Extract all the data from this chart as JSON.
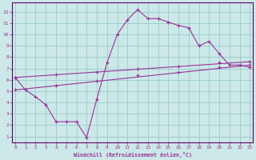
{
  "xlabel": "Windchill (Refroidissement éolien,°C)",
  "bg_color": "#cce8e8",
  "line_color": "#993399",
  "grid_color": "#99cccc",
  "spine_color": "#660066",
  "x_ticks": [
    0,
    1,
    2,
    3,
    4,
    5,
    6,
    7,
    8,
    9,
    10,
    11,
    12,
    13,
    14,
    15,
    16,
    17,
    18,
    19,
    20,
    21,
    22,
    23
  ],
  "y_ticks": [
    1,
    2,
    3,
    4,
    5,
    6,
    7,
    8,
    9,
    10,
    11,
    12
  ],
  "xlim": [
    -0.3,
    23.3
  ],
  "ylim": [
    0.5,
    12.8
  ],
  "curve1_x": [
    0,
    1,
    2,
    3,
    4,
    5,
    6,
    7,
    8,
    9,
    10,
    11,
    12,
    13,
    14,
    15,
    16,
    17,
    18,
    19,
    20,
    21,
    22,
    23
  ],
  "curve1_y": [
    6.2,
    5.1,
    4.5,
    3.8,
    2.3,
    2.3,
    2.3,
    0.9,
    4.3,
    7.5,
    10.0,
    11.3,
    12.2,
    11.4,
    11.4,
    11.1,
    10.8,
    10.6,
    9.0,
    9.4,
    8.3,
    7.3,
    7.3,
    7.1
  ],
  "curve2_x": [
    0,
    23
  ],
  "curve2_y": [
    5.1,
    7.3
  ],
  "curve3_x": [
    0,
    23
  ],
  "curve3_y": [
    6.2,
    7.6
  ],
  "marker_x1": [
    0,
    1,
    2,
    3,
    4,
    5,
    6,
    7,
    8,
    9,
    10,
    11,
    12,
    13,
    14,
    15,
    16,
    17,
    18,
    19,
    20,
    21,
    22,
    23
  ],
  "marker_y1": [
    6.2,
    5.1,
    4.5,
    3.8,
    2.3,
    2.3,
    2.3,
    0.9,
    4.3,
    7.5,
    10.0,
    11.3,
    12.2,
    11.4,
    11.4,
    11.1,
    10.8,
    10.6,
    9.0,
    9.4,
    8.3,
    7.3,
    7.3,
    7.1
  ],
  "marker_x2": [
    0,
    4,
    8,
    12,
    16,
    20,
    23
  ],
  "marker_y2": [
    5.1,
    5.5,
    5.9,
    6.4,
    6.7,
    7.1,
    7.3
  ],
  "marker_x3": [
    0,
    4,
    8,
    12,
    16,
    20,
    23
  ],
  "marker_y3": [
    6.2,
    6.5,
    6.7,
    7.0,
    7.2,
    7.5,
    7.6
  ]
}
